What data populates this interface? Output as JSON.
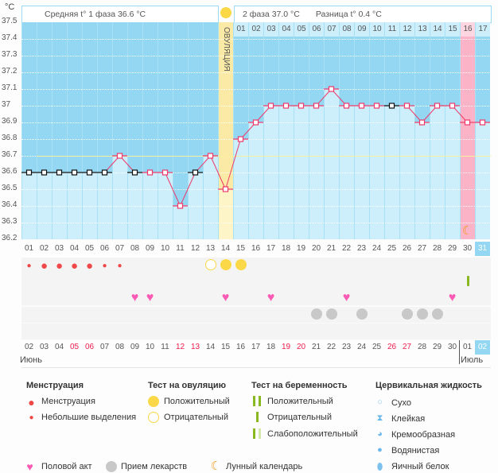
{
  "header": {
    "unit": "°C",
    "phase1": "Средняя t° 1 фаза 36.6 °C",
    "phase2": "2 фаза 37.0 °C",
    "diff": "Разница t° 0.4 °C",
    "ovulation_label": "ОВУЛЯЦИЯ"
  },
  "chart_data": {
    "type": "line",
    "title": "",
    "xlabel": "",
    "ylabel": "°C",
    "ylim": [
      36.2,
      37.5
    ],
    "y_ticks": [
      "37.5",
      "37.4",
      "37.3",
      "37.2",
      "37.1",
      "37",
      "36.9",
      "36.8",
      "36.7",
      "36.6",
      "36.5",
      "36.4",
      "36.3",
      "36.2"
    ],
    "cycle_days": [
      "01",
      "02",
      "03",
      "04",
      "05",
      "06",
      "07",
      "08",
      "09",
      "10",
      "11",
      "12",
      "13",
      "14",
      "15",
      "16",
      "17",
      "18",
      "19",
      "20",
      "21",
      "22",
      "23",
      "24",
      "25",
      "26",
      "27",
      "28",
      "29",
      "30",
      "31"
    ],
    "phase2_days": [
      "01",
      "02",
      "03",
      "04",
      "05",
      "06",
      "07",
      "08",
      "09",
      "10",
      "11",
      "12",
      "13",
      "14",
      "15",
      "16",
      "17"
    ],
    "temperatures": [
      36.6,
      36.6,
      36.6,
      36.6,
      36.6,
      36.6,
      36.7,
      36.6,
      36.6,
      36.6,
      36.4,
      36.6,
      36.7,
      36.5,
      36.8,
      36.9,
      37.0,
      37.0,
      37.0,
      37.0,
      37.1,
      37.0,
      37.0,
      37.0,
      37.0,
      37.0,
      36.9,
      37.0,
      37.0,
      36.9,
      36.9
    ],
    "excluded_days": [
      1,
      2,
      3,
      4,
      5,
      6,
      8,
      12,
      25
    ],
    "coverline": 36.7,
    "ovulation_day": 14,
    "highlight_day": 30,
    "today_day": 31,
    "colors": {
      "line": "#ee3a6a",
      "bg": "#93d7f2",
      "fill": "#cdeefb",
      "ovulation": "#fbeaa6",
      "highlight": "#fbb3c8"
    }
  },
  "symbols": {
    "menstruation": {
      "big": [
        2,
        3,
        4,
        5
      ],
      "small": [
        1,
        6,
        7
      ]
    },
    "ovulation_negative": [
      13
    ],
    "ovulation_positive": [
      14,
      15
    ],
    "pregnancy_negative": [
      30
    ],
    "intercourse": [
      8,
      9,
      14,
      17,
      22,
      29
    ],
    "medication": [
      20,
      21,
      23,
      26,
      27,
      28
    ],
    "moon": [
      30
    ]
  },
  "dates": {
    "labels": [
      "02",
      "03",
      "04",
      "05",
      "06",
      "07",
      "08",
      "09",
      "10",
      "11",
      "12",
      "13",
      "14",
      "15",
      "16",
      "17",
      "18",
      "19",
      "20",
      "21",
      "22",
      "23",
      "24",
      "25",
      "26",
      "27",
      "28",
      "29",
      "30",
      "01",
      "02"
    ],
    "weekend": [
      3,
      4,
      10,
      11,
      17,
      18,
      24,
      25
    ],
    "month1": "Июнь",
    "month2": "Июль"
  },
  "legend": {
    "menstruation": {
      "title": "Менструация",
      "items": [
        "Менструация",
        "Небольшие выделения"
      ]
    },
    "ovulation": {
      "title": "Тест на овуляцию",
      "items": [
        "Положительный",
        "Отрицательный"
      ]
    },
    "pregnancy": {
      "title": "Тест на беременность",
      "items": [
        "Положительный",
        "Отрицательный",
        "Слабоположительный"
      ]
    },
    "cervical": {
      "title": "Цервикальная жидкость",
      "items": [
        "Сухо",
        "Клейкая",
        "Кремообразная",
        "Водянистая",
        "Яичный белок"
      ]
    },
    "other": [
      "Половой акт",
      "Прием лекарств",
      "Лунный календарь"
    ]
  }
}
